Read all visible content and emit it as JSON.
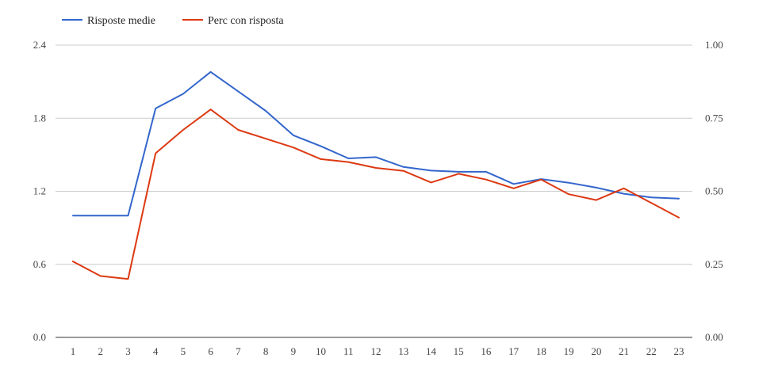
{
  "chart_data": {
    "type": "line",
    "title": "",
    "xlabel": "",
    "ylabel_left": "",
    "ylabel_right": "",
    "x": [
      1,
      2,
      3,
      4,
      5,
      6,
      7,
      8,
      9,
      10,
      11,
      12,
      13,
      14,
      15,
      16,
      17,
      18,
      19,
      20,
      21,
      22,
      23
    ],
    "y_left_ticks": [
      "0.0",
      "0.6",
      "1.2",
      "1.8",
      "2.4"
    ],
    "y_left_lim": [
      0,
      2.4
    ],
    "y_right_ticks": [
      "0.00",
      "0.25",
      "0.50",
      "0.75",
      "1.00"
    ],
    "y_right_lim": [
      0,
      1.0
    ],
    "grid": true,
    "legend_position": "top-left",
    "series": [
      {
        "name": "Risposte medie",
        "axis": "left",
        "color": "#3366cc",
        "values": [
          1.0,
          1.0,
          1.0,
          1.88,
          2.0,
          2.18,
          2.02,
          1.86,
          1.66,
          1.57,
          1.47,
          1.48,
          1.4,
          1.37,
          1.36,
          1.36,
          1.26,
          1.3,
          1.27,
          1.23,
          1.18,
          1.15,
          1.14
        ]
      },
      {
        "name": "Perc con risposta",
        "axis": "right",
        "color": "#dc3912",
        "values": [
          0.26,
          0.21,
          0.2,
          0.63,
          0.71,
          0.78,
          0.71,
          0.68,
          0.65,
          0.61,
          0.6,
          0.58,
          0.57,
          0.53,
          0.56,
          0.54,
          0.51,
          0.54,
          0.49,
          0.47,
          0.51,
          0.46,
          0.41
        ]
      }
    ]
  }
}
